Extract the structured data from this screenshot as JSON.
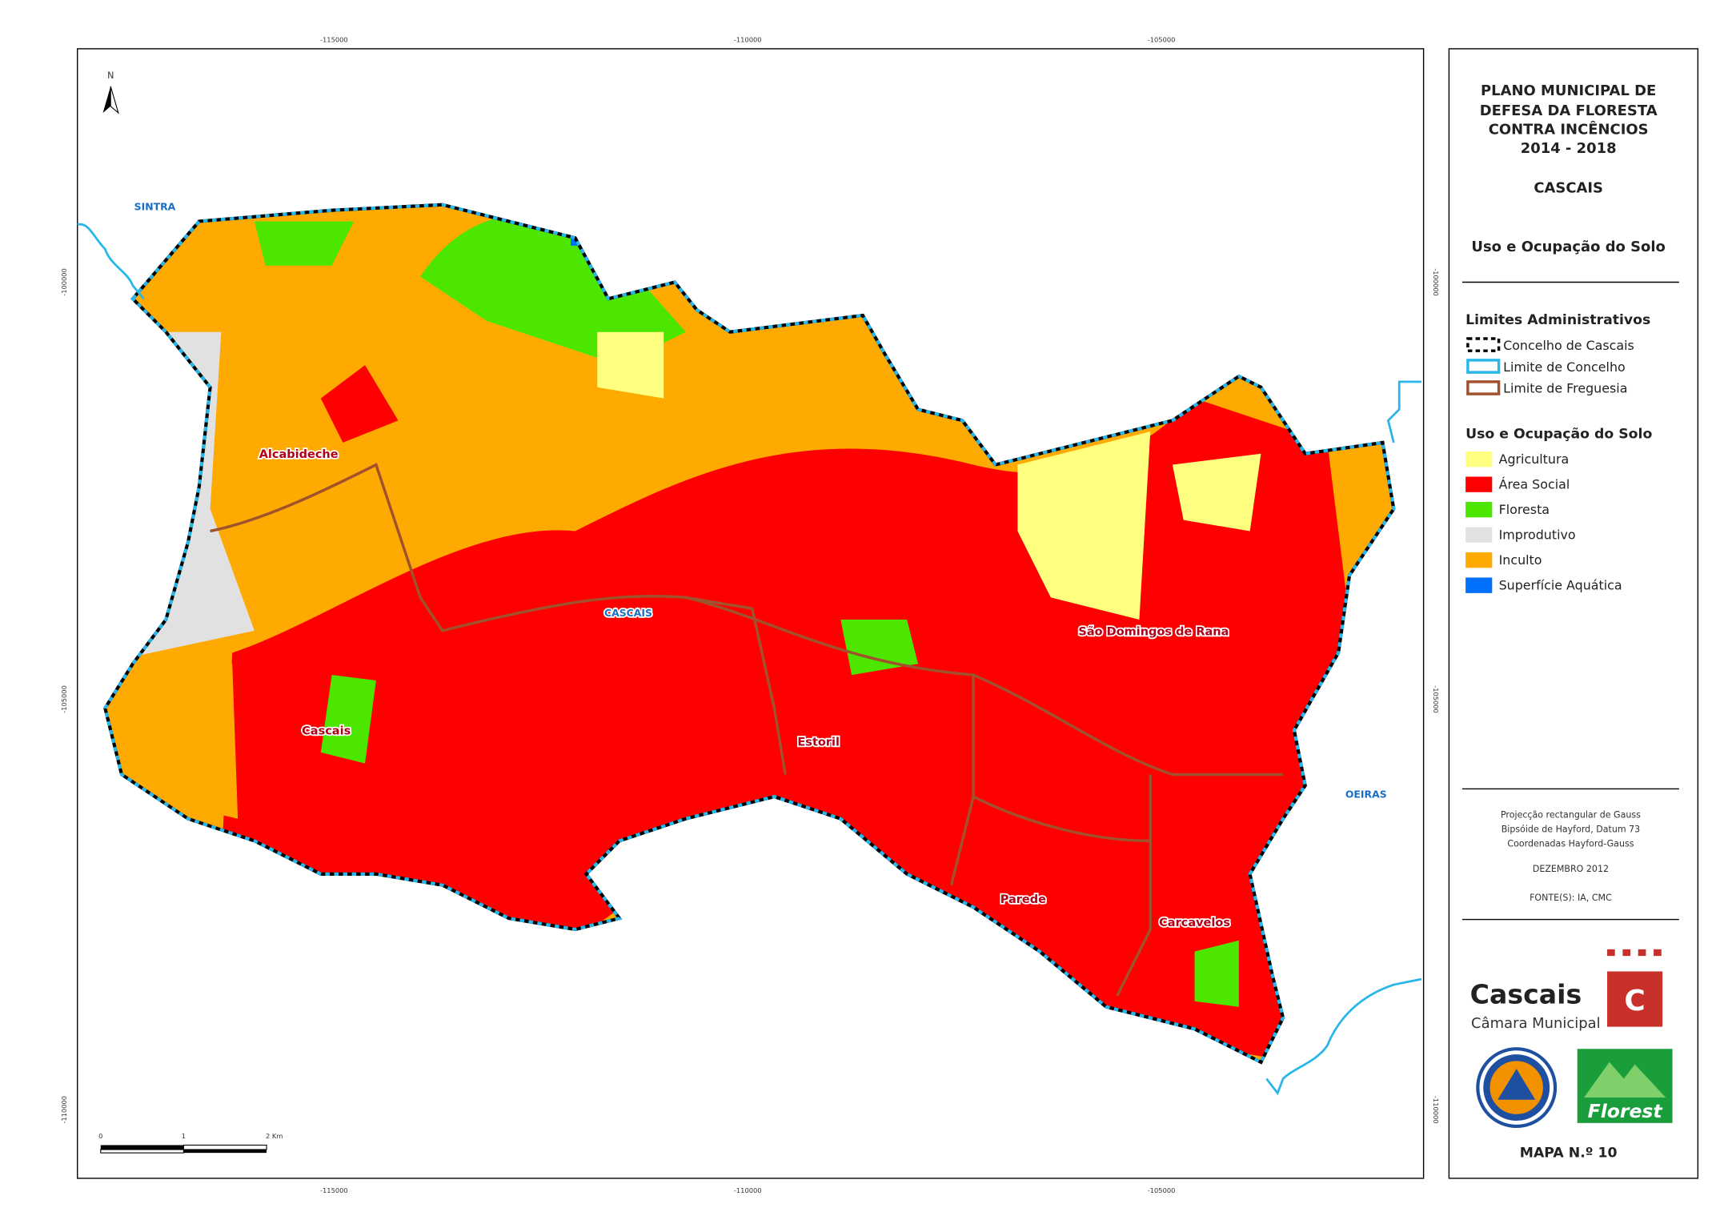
{
  "map": {
    "coordinates": {
      "top": [
        "-115000",
        "-110000",
        "-105000"
      ],
      "bottom": [
        "-115000",
        "-110000",
        "-105000"
      ],
      "left": [
        "-100000",
        "-105000",
        "-110000"
      ],
      "right": [
        "-100000",
        "-105000",
        "-110000"
      ]
    },
    "north": "N",
    "places": {
      "sintra": "SINTRA",
      "oeiras": "OEIRAS",
      "cascais_concelho": "CASCAIS",
      "alcabideche": "Alcabideche",
      "cascais": "Cascais",
      "estoril": "Estoril",
      "sao_domingos": "São Domingos de Rana",
      "parede": "Parede",
      "carcavelos": "Carcavelos"
    },
    "scale_bar": [
      "0",
      "1",
      "2 Km"
    ]
  },
  "panel": {
    "title": [
      "PLANO MUNICIPAL DE",
      "DEFESA DA FLORESTA",
      "CONTRA INCÊNCIOS",
      "2014 - 2018"
    ],
    "municipality": "CASCAIS",
    "subtitle": "Uso e Ocupação do Solo",
    "admin_heading": "Limites Administrativos",
    "admin_items": [
      {
        "label": "Concelho de Cascais",
        "color": "#000000"
      },
      {
        "label": "Limite de Concelho",
        "color": "#29b6ea"
      },
      {
        "label": "Limite de Freguesia",
        "color": "#a0522d"
      }
    ],
    "landuse_heading": "Uso e Ocupação do Solo",
    "landuse_items": [
      {
        "label": "Agricultura",
        "color": "#ffff80"
      },
      {
        "label": "Área Social",
        "color": "#ff0000"
      },
      {
        "label": "Floresta",
        "color": "#4ce600"
      },
      {
        "label": "Improdutivo",
        "color": "#e1e1e1"
      },
      {
        "label": "Inculto",
        "color": "#ffaa00"
      },
      {
        "label": "Superfície Aquática",
        "color": "#0070ff"
      }
    ],
    "projection": [
      "Projecção rectangular de Gauss",
      "Bipsóide de Hayford, Datum 73",
      "Coordenadas Hayford-Gauss"
    ],
    "date": "DEZEMBRO 2012",
    "sources": "FONTE(S): IA, CMC",
    "logo_cascais": "Cascais",
    "logo_camara": "Câmara Municipal",
    "logo_c": "C",
    "logo_florest": "Florest",
    "map_number": "MAPA N.º 10"
  }
}
